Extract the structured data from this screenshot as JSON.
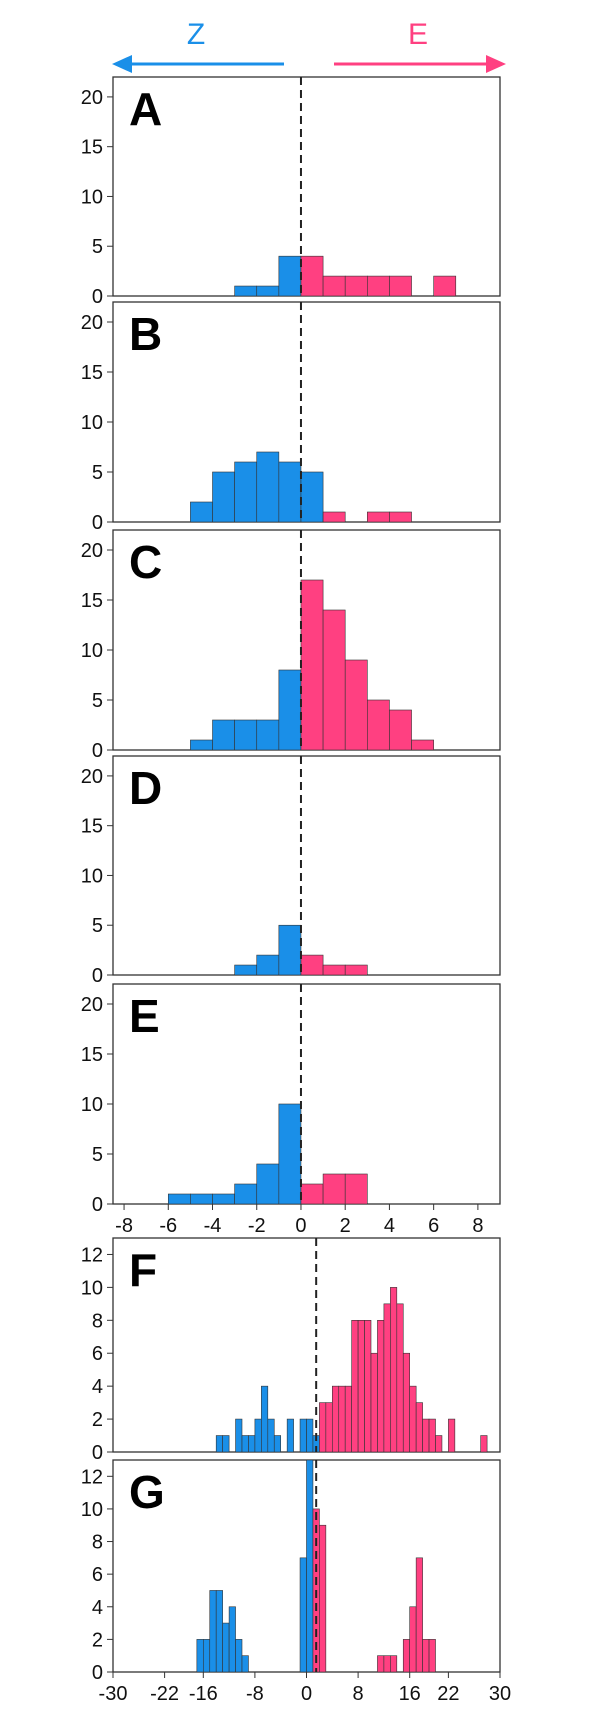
{
  "colors": {
    "z": "#1a8fe8",
    "e": "#ff4081",
    "divider": "#222222",
    "frame": "#333333"
  },
  "header": {
    "left_label": "Z",
    "right_label": "E"
  },
  "chart_data": [
    {
      "type": "bar",
      "label": "A",
      "xlim": [
        -8.5,
        9
      ],
      "ylim": [
        0,
        22
      ],
      "yticks": [
        0,
        5,
        10,
        15,
        20
      ],
      "xticks": [],
      "divider_at": 0,
      "z_bins": [
        [
          -3,
          1
        ],
        [
          -2,
          1
        ],
        [
          -1,
          4
        ]
      ],
      "e_bins": [
        [
          0,
          4
        ],
        [
          1,
          2
        ],
        [
          2,
          2
        ],
        [
          3,
          2
        ],
        [
          4,
          2
        ],
        [
          6,
          2
        ]
      ]
    },
    {
      "type": "bar",
      "label": "B",
      "xlim": [
        -8.5,
        9
      ],
      "ylim": [
        0,
        22
      ],
      "yticks": [
        0,
        5,
        10,
        15,
        20
      ],
      "xticks": [],
      "divider_at": 0,
      "z_bins": [
        [
          -5,
          2
        ],
        [
          -4,
          5
        ],
        [
          -3,
          6
        ],
        [
          -2,
          7
        ],
        [
          -1,
          6
        ],
        [
          0,
          5
        ]
      ],
      "e_bins": [
        [
          1,
          1
        ],
        [
          3,
          1
        ],
        [
          4,
          1
        ]
      ]
    },
    {
      "type": "bar",
      "label": "C",
      "xlim": [
        -8.5,
        9
      ],
      "ylim": [
        0,
        22
      ],
      "yticks": [
        0,
        5,
        10,
        15,
        20
      ],
      "xticks": [],
      "divider_at": 0,
      "z_bins": [
        [
          -5,
          1
        ],
        [
          -4,
          3
        ],
        [
          -3,
          3
        ],
        [
          -2,
          3
        ],
        [
          -1,
          8
        ]
      ],
      "e_bins": [
        [
          0,
          17
        ],
        [
          1,
          14
        ],
        [
          2,
          9
        ],
        [
          3,
          5
        ],
        [
          4,
          4
        ],
        [
          5,
          1
        ]
      ]
    },
    {
      "type": "bar",
      "label": "D",
      "xlim": [
        -8.5,
        9
      ],
      "ylim": [
        0,
        22
      ],
      "yticks": [
        0,
        5,
        10,
        15,
        20
      ],
      "xticks": [],
      "divider_at": 0,
      "z_bins": [
        [
          -3,
          1
        ],
        [
          -2,
          2
        ],
        [
          -1,
          5
        ]
      ],
      "e_bins": [
        [
          0,
          2
        ],
        [
          1,
          1
        ],
        [
          2,
          1
        ]
      ]
    },
    {
      "type": "bar",
      "label": "E",
      "xlim": [
        -8.5,
        9
      ],
      "ylim": [
        0,
        22
      ],
      "yticks": [
        0,
        5,
        10,
        15,
        20
      ],
      "xticks": [
        -8,
        -6,
        -4,
        -2,
        0,
        2,
        4,
        6,
        8
      ],
      "divider_at": 0,
      "z_bins": [
        [
          -6,
          1
        ],
        [
          -5,
          1
        ],
        [
          -4,
          1
        ],
        [
          -3,
          2
        ],
        [
          -2,
          4
        ],
        [
          -1,
          10
        ]
      ],
      "e_bins": [
        [
          0,
          2
        ],
        [
          1,
          3
        ],
        [
          2,
          3
        ]
      ]
    },
    {
      "type": "bar",
      "label": "F",
      "xlim": [
        -30,
        30
      ],
      "ylim": [
        0,
        13
      ],
      "yticks": [
        0,
        2,
        4,
        6,
        8,
        10,
        12
      ],
      "xticks": [],
      "divider_at": 1.5,
      "z_bins": [
        [
          -14,
          1
        ],
        [
          -13,
          1
        ],
        [
          -11,
          2
        ],
        [
          -10,
          1
        ],
        [
          -9,
          1
        ],
        [
          -8,
          2
        ],
        [
          -7,
          4
        ],
        [
          -6,
          2
        ],
        [
          -5,
          1
        ],
        [
          -3,
          2
        ],
        [
          -1,
          2
        ],
        [
          0,
          2
        ],
        [
          1,
          1
        ]
      ],
      "e_bins": [
        [
          2,
          3
        ],
        [
          3,
          3
        ],
        [
          4,
          4
        ],
        [
          5,
          4
        ],
        [
          6,
          4
        ],
        [
          7,
          8
        ],
        [
          8,
          8
        ],
        [
          9,
          8
        ],
        [
          10,
          6
        ],
        [
          11,
          8
        ],
        [
          12,
          9
        ],
        [
          13,
          10
        ],
        [
          14,
          9
        ],
        [
          15,
          6
        ],
        [
          16,
          4
        ],
        [
          17,
          3
        ],
        [
          18,
          2
        ],
        [
          19,
          2
        ],
        [
          20,
          1
        ],
        [
          22,
          2
        ],
        [
          27,
          1
        ]
      ]
    },
    {
      "type": "bar",
      "label": "G",
      "xlim": [
        -30,
        30
      ],
      "ylim": [
        0,
        13
      ],
      "yticks": [
        0,
        2,
        4,
        6,
        8,
        10,
        12
      ],
      "xticks": [
        -30,
        -22,
        -16,
        -8,
        0,
        8,
        16,
        22,
        30
      ],
      "divider_at": 1.5,
      "z_bins": [
        [
          -17,
          2
        ],
        [
          -16,
          2
        ],
        [
          -15,
          5
        ],
        [
          -14,
          5
        ],
        [
          -13,
          3
        ],
        [
          -12,
          4
        ],
        [
          -11,
          2
        ],
        [
          -10,
          1
        ],
        [
          -1,
          7
        ],
        [
          0,
          13
        ]
      ],
      "e_bins": [
        [
          1,
          10
        ],
        [
          2,
          9
        ],
        [
          11,
          1
        ],
        [
          12,
          1
        ],
        [
          13,
          1
        ],
        [
          15,
          2
        ],
        [
          16,
          4
        ],
        [
          17,
          7
        ],
        [
          18,
          2
        ],
        [
          19,
          2
        ]
      ]
    }
  ]
}
